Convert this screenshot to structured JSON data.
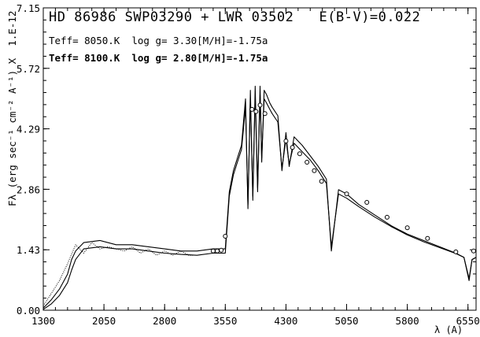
{
  "chart_data": {
    "type": "line",
    "title": "HD 86986 SWP03290 + LWR 03502   E(B-V)=0.022",
    "annotations": [
      "Teff= 8050.K  log g= 3.30[M/H]=-1.75a",
      "Teff= 8100.K  log g= 2.80[M/H]=-1.75a"
    ],
    "xlabel": "λ (A)",
    "ylabel": "Fλ (erg sec⁻¹ cm⁻² A⁻¹) X  1.E-12",
    "xlim": [
      1300,
      6650
    ],
    "ylim": [
      0.0,
      7.15
    ],
    "x_ticks": [
      "1300",
      "2050",
      "2800",
      "3550",
      "4300",
      "5050",
      "5800",
      "6550"
    ],
    "y_ticks": [
      "0.00",
      "1.43",
      "2.86",
      "4.29",
      "5.72",
      "7.15"
    ],
    "series": [
      {
        "style": "dotted",
        "x": [
          1300,
          1400,
          1500,
          1600,
          1700,
          1800,
          1900,
          2000,
          2100,
          2200,
          2300,
          2400,
          2500,
          2600,
          2700,
          2800,
          2900,
          3000,
          3100,
          3150
        ],
        "y": [
          0.1,
          0.4,
          0.7,
          1.1,
          1.55,
          1.35,
          1.6,
          1.45,
          1.5,
          1.45,
          1.4,
          1.5,
          1.35,
          1.45,
          1.3,
          1.4,
          1.3,
          1.4,
          1.3,
          1.3
        ]
      },
      {
        "style": "solid",
        "x": [
          1300,
          1400,
          1500,
          1600,
          1650,
          1700,
          1800,
          2000,
          2200,
          2400,
          2600,
          2800,
          3000,
          3200,
          3400,
          3550,
          3600,
          3650,
          3700,
          3750,
          3800,
          3830,
          3860,
          3890,
          3920,
          3950,
          3980,
          4000,
          4030,
          4060,
          4100,
          4130,
          4200,
          4250,
          4300,
          4340,
          4400,
          4500,
          4600,
          4700,
          4800,
          4861,
          4950,
          5050,
          5200,
          5400,
          5600,
          5800,
          6000,
          6200,
          6400,
          6500,
          6563,
          6600,
          6650
        ],
        "y": [
          0.05,
          0.25,
          0.5,
          0.85,
          1.2,
          1.4,
          1.6,
          1.65,
          1.55,
          1.55,
          1.5,
          1.45,
          1.4,
          1.4,
          1.45,
          1.45,
          2.8,
          3.3,
          3.6,
          3.9,
          5.0,
          2.4,
          5.2,
          2.6,
          5.3,
          2.8,
          5.3,
          3.5,
          5.2,
          5.1,
          4.9,
          4.8,
          4.6,
          3.3,
          4.2,
          3.4,
          4.1,
          3.9,
          3.65,
          3.4,
          3.1,
          1.4,
          2.85,
          2.75,
          2.5,
          2.25,
          2.0,
          1.8,
          1.65,
          1.5,
          1.35,
          1.25,
          0.7,
          1.2,
          1.25
        ]
      },
      {
        "style": "solid",
        "x": [
          1300,
          1400,
          1500,
          1600,
          1650,
          1700,
          1800,
          2000,
          2200,
          2400,
          2600,
          2800,
          3000,
          3200,
          3400,
          3550,
          3600,
          3650,
          3700,
          3750,
          3800,
          3830,
          3860,
          3890,
          3920,
          3950,
          3980,
          4000,
          4030,
          4060,
          4100,
          4130,
          4200,
          4250,
          4300,
          4340,
          4400,
          4500,
          4600,
          4700,
          4800,
          4861,
          4950,
          5050,
          5200,
          5400,
          5600,
          5800,
          6000,
          6200,
          6400,
          6500,
          6563,
          6600,
          6650
        ],
        "y": [
          0.02,
          0.15,
          0.35,
          0.65,
          0.95,
          1.2,
          1.45,
          1.5,
          1.45,
          1.45,
          1.4,
          1.35,
          1.32,
          1.3,
          1.35,
          1.35,
          2.7,
          3.2,
          3.5,
          3.8,
          4.8,
          2.5,
          5.0,
          2.7,
          5.1,
          2.9,
          5.1,
          3.6,
          5.0,
          4.9,
          4.75,
          4.65,
          4.45,
          3.35,
          4.05,
          3.45,
          3.95,
          3.75,
          3.55,
          3.3,
          3.0,
          1.5,
          2.75,
          2.65,
          2.45,
          2.2,
          1.98,
          1.78,
          1.62,
          1.48,
          1.34,
          1.25,
          0.75,
          1.2,
          1.25
        ]
      },
      {
        "style": "markers",
        "x": [
          3400,
          3450,
          3500,
          3550,
          3880,
          3930,
          3980,
          4040,
          4300,
          4380,
          4470,
          4560,
          4650,
          4740,
          5050,
          5300,
          5550,
          5800,
          6050,
          6400,
          6620
        ],
        "y": [
          1.4,
          1.4,
          1.42,
          1.75,
          4.75,
          4.7,
          4.85,
          4.65,
          4.0,
          3.85,
          3.7,
          3.5,
          3.3,
          3.05,
          2.75,
          2.55,
          2.2,
          1.95,
          1.7,
          1.38,
          1.4
        ]
      }
    ]
  }
}
